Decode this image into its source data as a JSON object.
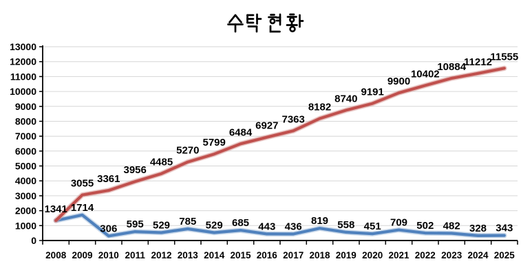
{
  "chart_data": {
    "type": "line",
    "title": "수탁 현황",
    "legend": "none",
    "grid": true,
    "categories": [
      "2008",
      "2009",
      "2010",
      "2011",
      "2012",
      "2013",
      "2014",
      "2015",
      "2016",
      "2017",
      "2018",
      "2019",
      "2020",
      "2021",
      "2022",
      "2023",
      "2024",
      "2025"
    ],
    "series": [
      {
        "id": "cumulative-red-line",
        "color": "#C0504D",
        "halo_color": "#D59592",
        "values": [
          1341,
          3055,
          3361,
          3956,
          4485,
          5270,
          5799,
          6484,
          6927,
          7363,
          8182,
          8740,
          9191,
          9900,
          10402,
          10884,
          11212,
          11555
        ],
        "labels": [
          "1341",
          "3055",
          "3361",
          "3956",
          "4485",
          "5270",
          "5799",
          "6484",
          "6927",
          "7363",
          "8182",
          "8740",
          "9191",
          "9900",
          "10402",
          "10884",
          "11212",
          "11555"
        ]
      },
      {
        "id": "annual-blue-line",
        "color": "#4F81BD",
        "halo_color": "#9FB9D8",
        "values": [
          1341,
          1714,
          306,
          595,
          529,
          785,
          529,
          685,
          443,
          436,
          819,
          558,
          451,
          709,
          502,
          482,
          328,
          343
        ],
        "labels": [
          "",
          "1714",
          "306",
          "595",
          "529",
          "785",
          "529",
          "685",
          "443",
          "436",
          "819",
          "558",
          "451",
          "709",
          "502",
          "482",
          "328",
          "343"
        ]
      }
    ],
    "y_axis": {
      "min": 0,
      "max": 13000,
      "step": 1000,
      "tick_labels": [
        "0",
        "1000",
        "2000",
        "3000",
        "4000",
        "5000",
        "6000",
        "7000",
        "8000",
        "9000",
        "10000",
        "11000",
        "12000",
        "13000"
      ]
    },
    "colors": {
      "axis": "#000000",
      "grid": "#D6D6D6",
      "label": "#000000",
      "title": "#000000",
      "background": "#FFFFFF"
    }
  }
}
